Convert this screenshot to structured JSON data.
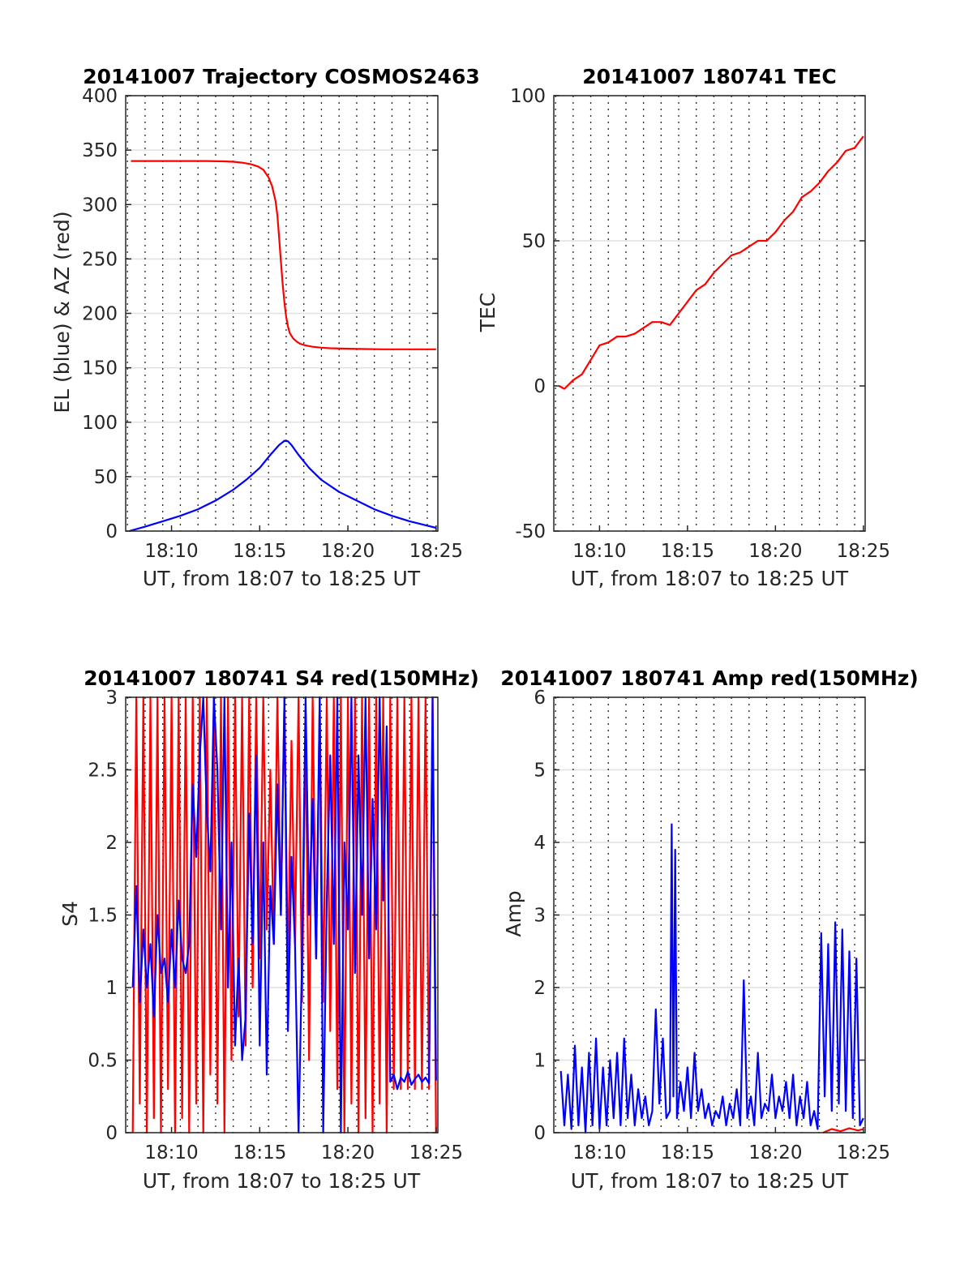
{
  "chart_data": [
    {
      "type": "line",
      "title": "20141007 Trajectory COSMOS2463",
      "xlabel": "UT, from 18:07 to 18:25 UT",
      "ylabel": "EL (blue) & AZ (red)",
      "xlim": [
        7.4,
        25.1
      ],
      "ylim": [
        0,
        400
      ],
      "yticks": [
        0,
        50,
        100,
        150,
        200,
        250,
        300,
        350,
        400
      ],
      "xtick_values": [
        10,
        15,
        20,
        25
      ],
      "xtick_labels": [
        "18:10",
        "18:15",
        "18:20",
        "18:25"
      ],
      "grid": "dotted vertical minute lines, light horizontal lines",
      "series": [
        {
          "color": "#ff0000",
          "x": [
            7.7,
            9,
            10,
            11,
            12,
            13,
            13.5,
            14,
            14.5,
            14.9,
            15.2,
            15.5,
            15.7,
            15.9,
            16.0,
            16.1,
            16.2,
            16.3,
            16.4,
            16.5,
            16.6,
            16.7,
            16.9,
            17.1,
            17.3,
            17.6,
            18.0,
            18.5,
            19,
            20,
            21,
            22,
            23,
            24,
            25
          ],
          "values": [
            340,
            340,
            340,
            340,
            340,
            339.7,
            339.3,
            338.5,
            337,
            335,
            332,
            325,
            317,
            303,
            290,
            270,
            248,
            227,
            210,
            197,
            188,
            182,
            177,
            174,
            172,
            170.5,
            169.3,
            168.5,
            168,
            167.5,
            167.2,
            167,
            167,
            167,
            167
          ]
        },
        {
          "color": "#0000ff",
          "x": [
            7.6,
            8.5,
            9.5,
            10.5,
            11.5,
            12.5,
            13.5,
            14.3,
            15,
            15.6,
            16.1,
            16.4,
            16.6,
            16.8,
            17.2,
            17.8,
            18.5,
            19.5,
            20.5,
            21.5,
            22.5,
            23.5,
            24.5,
            25
          ],
          "values": [
            0,
            4,
            9,
            14,
            20,
            28,
            38,
            48,
            58,
            70,
            79,
            83,
            82.5,
            79,
            70,
            58,
            47,
            36,
            28,
            20,
            14,
            9,
            5,
            3
          ]
        }
      ]
    },
    {
      "type": "line",
      "title": "20141007 180741 TEC",
      "xlabel": "UT, from 18:07 to 18:25 UT",
      "ylabel": "TEC",
      "xlim": [
        7.4,
        25.1
      ],
      "ylim": [
        -50,
        100
      ],
      "yticks": [
        -50,
        0,
        50,
        100
      ],
      "xtick_values": [
        10,
        15,
        20,
        25
      ],
      "xtick_labels": [
        "18:10",
        "18:15",
        "18:20",
        "18:25"
      ],
      "series": [
        {
          "color": "#ff0000",
          "x": [
            7.7,
            8.0,
            8.5,
            9.0,
            9.5,
            10.0,
            10.5,
            11.0,
            11.5,
            12.0,
            12.5,
            13.0,
            13.5,
            14.0,
            14.5,
            15.0,
            15.5,
            16.0,
            16.5,
            17.0,
            17.5,
            18.0,
            18.5,
            19.0,
            19.5,
            20.0,
            20.5,
            21.0,
            21.5,
            22.0,
            22.5,
            23.0,
            23.5,
            24.0,
            24.5,
            25.0
          ],
          "values": [
            0,
            -1,
            2,
            4,
            9,
            14,
            15,
            17,
            17,
            18,
            20,
            22,
            22,
            21,
            25,
            29,
            33,
            35,
            39,
            42,
            45,
            46,
            48,
            50,
            50,
            53,
            57,
            60,
            65,
            67,
            70,
            74,
            77,
            81,
            82,
            86
          ]
        }
      ]
    },
    {
      "type": "line",
      "title": "20141007 180741 S4 red(150MHz)",
      "xlabel": "UT, from 18:07 to 18:25 UT",
      "ylabel": "S4",
      "xlim": [
        7.4,
        25.1
      ],
      "ylim": [
        0,
        3
      ],
      "yticks": [
        0,
        0.5,
        1,
        1.5,
        2,
        2.5,
        3
      ],
      "ytick_labels": [
        "0",
        "0.5",
        "1",
        "1.5",
        "2",
        "2.5",
        "3"
      ],
      "xtick_values": [
        10,
        15,
        20,
        25
      ],
      "xtick_labels": [
        "18:10",
        "18:15",
        "18:20",
        "18:25"
      ],
      "series": [
        {
          "color": "#ff0000",
          "x": [
            7.8,
            8.0,
            8.2,
            8.4,
            8.6,
            8.8,
            9.0,
            9.2,
            9.4,
            9.6,
            9.8,
            10.0,
            10.2,
            10.4,
            10.6,
            10.8,
            11.0,
            11.2,
            11.4,
            11.6,
            11.8,
            12.0,
            12.2,
            12.4,
            12.6,
            12.8,
            13.0,
            13.2,
            13.4,
            13.6,
            13.8,
            14.0,
            14.2,
            14.4,
            14.6,
            14.8,
            15.0,
            15.2,
            15.4,
            15.6,
            15.8,
            16.0,
            16.2,
            16.4,
            16.6,
            16.8,
            17.0,
            17.2,
            17.4,
            17.6,
            17.8,
            18.0,
            18.2,
            18.4,
            18.6,
            18.8,
            19.0,
            19.2,
            19.4,
            19.6,
            19.8,
            20.0,
            20.2,
            20.4,
            20.6,
            20.8,
            21.0,
            21.2,
            21.4,
            21.6,
            21.8,
            22.0,
            22.2,
            22.4,
            22.6,
            22.8,
            23.0,
            23.2,
            23.4,
            23.6,
            23.8,
            24.0,
            24.2,
            24.4,
            24.6,
            24.8,
            25.0
          ],
          "values": [
            0,
            3,
            0.2,
            3,
            0,
            3,
            0.1,
            3,
            0,
            3,
            0.3,
            3,
            0,
            3,
            0.1,
            3,
            0,
            3,
            0.2,
            3,
            0,
            3,
            0.4,
            3,
            0.2,
            3,
            0,
            3,
            0.5,
            3,
            0.8,
            3,
            0.6,
            3,
            1.0,
            3,
            1.2,
            3,
            1.4,
            2.5,
            1.3,
            3,
            1.5,
            3,
            1.1,
            2.7,
            1.3,
            3,
            0.9,
            2.8,
            0.5,
            3,
            1.2,
            3,
            0.9,
            3,
            0.7,
            3,
            0.3,
            3,
            0,
            3,
            0.2,
            3,
            0,
            3,
            0.1,
            3,
            0,
            3,
            0.2,
            3,
            0,
            3,
            0.3,
            3,
            0.3,
            3,
            0.3,
            3,
            0.3,
            3,
            0.3,
            3,
            0.3,
            3,
            0
          ]
        },
        {
          "color": "#0000ff",
          "x": [
            7.8,
            8.0,
            8.2,
            8.4,
            8.6,
            8.8,
            9.0,
            9.2,
            9.4,
            9.6,
            9.8,
            10.0,
            10.2,
            10.4,
            10.6,
            10.8,
            11.0,
            11.2,
            11.4,
            11.6,
            11.8,
            12.0,
            12.2,
            12.4,
            12.6,
            12.8,
            13.0,
            13.2,
            13.4,
            13.6,
            13.8,
            14.0,
            14.2,
            14.4,
            14.6,
            14.8,
            15.0,
            15.2,
            15.4,
            15.6,
            15.8,
            16.0,
            16.2,
            16.4,
            16.6,
            16.8,
            17.0,
            17.2,
            17.4,
            17.6,
            17.8,
            18.0,
            18.2,
            18.4,
            18.6,
            18.8,
            19.0,
            19.2,
            19.4,
            19.6,
            19.8,
            20.0,
            20.2,
            20.4,
            20.6,
            20.8,
            21.0,
            21.2,
            21.4,
            21.6,
            21.8,
            22.0,
            22.2,
            22.4,
            22.6,
            22.8,
            23.0,
            23.2,
            23.4,
            23.6,
            23.8,
            24.0,
            24.2,
            24.4,
            24.6,
            24.8,
            25.0
          ],
          "values": [
            1.0,
            1.7,
            0.9,
            1.4,
            1.0,
            1.3,
            0.8,
            1.5,
            1.1,
            1.2,
            0.9,
            1.4,
            1.0,
            1.6,
            1.2,
            1.1,
            1.3,
            2.4,
            1.9,
            2.6,
            3,
            2.2,
            1.8,
            3,
            2.5,
            1.4,
            3,
            1.0,
            2.0,
            0.6,
            1.2,
            0.5,
            0.8,
            2.2,
            1.3,
            2.6,
            0.6,
            2.0,
            0.4,
            1.7,
            1.3,
            2.4,
            1.5,
            3,
            0.7,
            1.9,
            1.3,
            0.0,
            1.2,
            3,
            1.5,
            2.3,
            1.2,
            3,
            0.0,
            1.6,
            2.6,
            1.3,
            3,
            0.0,
            2.0,
            1.4,
            3,
            1.1,
            2.6,
            1.5,
            3,
            1.2,
            2.3,
            1.4,
            3,
            1.6,
            2.8,
            0.35,
            0.4,
            0.3,
            0.38,
            0.35,
            0.42,
            0.33,
            0.37,
            0.4,
            0.35,
            0.38,
            0.34,
            3,
            0.36
          ]
        }
      ]
    },
    {
      "type": "line",
      "title": "20141007 180741 Amp red(150MHz)",
      "xlabel": "UT, from 18:07 to 18:25 UT",
      "ylabel": "Amp",
      "xlim": [
        7.4,
        25.1
      ],
      "ylim": [
        0,
        6
      ],
      "yticks": [
        0,
        1,
        2,
        3,
        4,
        5,
        6
      ],
      "xtick_values": [
        10,
        15,
        20,
        25
      ],
      "xtick_labels": [
        "18:10",
        "18:15",
        "18:20",
        "18:25"
      ],
      "series": [
        {
          "color": "#0000ff",
          "x": [
            7.8,
            8.0,
            8.2,
            8.4,
            8.6,
            8.8,
            9.0,
            9.2,
            9.4,
            9.6,
            9.8,
            10.0,
            10.2,
            10.4,
            10.6,
            10.8,
            11.0,
            11.2,
            11.4,
            11.6,
            11.8,
            12.0,
            12.2,
            12.4,
            12.6,
            12.8,
            13.0,
            13.2,
            13.4,
            13.6,
            13.8,
            14.0,
            14.1,
            14.2,
            14.3,
            14.4,
            14.6,
            14.8,
            15.0,
            15.2,
            15.4,
            15.6,
            15.8,
            16.0,
            16.2,
            16.4,
            16.6,
            16.8,
            17.0,
            17.2,
            17.4,
            17.6,
            17.8,
            18.0,
            18.2,
            18.4,
            18.6,
            18.8,
            19.0,
            19.2,
            19.4,
            19.6,
            19.8,
            20.0,
            20.2,
            20.4,
            20.6,
            20.8,
            21.0,
            21.2,
            21.4,
            21.6,
            21.8,
            22.0,
            22.2,
            22.4,
            22.6,
            22.8,
            23.0,
            23.2,
            23.4,
            23.6,
            23.8,
            24.0,
            24.2,
            24.4,
            24.6,
            24.8,
            25.0
          ],
          "values": [
            0.85,
            0.1,
            0.8,
            0.05,
            1.2,
            0.1,
            0.9,
            0.0,
            1.1,
            0.1,
            1.3,
            0.05,
            0.9,
            0.1,
            1.0,
            0.2,
            1.1,
            0.1,
            1.3,
            0.2,
            0.8,
            0.1,
            0.6,
            0.2,
            0.5,
            0.1,
            0.3,
            1.7,
            0.4,
            1.3,
            0.2,
            0.3,
            4.25,
            0.5,
            3.9,
            0.2,
            0.7,
            0.3,
            0.9,
            0.2,
            1.1,
            0.3,
            0.6,
            0.2,
            0.4,
            0.1,
            0.3,
            0.2,
            0.5,
            0.1,
            0.4,
            0.2,
            0.6,
            0.1,
            2.1,
            0.2,
            0.5,
            0.1,
            1.1,
            0.2,
            0.4,
            0.3,
            0.8,
            0.2,
            0.5,
            0.3,
            0.7,
            0.2,
            0.8,
            0.1,
            0.5,
            0.2,
            0.7,
            0.1,
            0.3,
            0.05,
            2.75,
            0.5,
            2.6,
            0.3,
            2.9,
            0.4,
            2.8,
            0.3,
            2.5,
            0.2,
            2.4,
            0.1,
            0.2
          ]
        },
        {
          "color": "#ff0000",
          "x": [
            22.7,
            23.2,
            23.7,
            24.2,
            24.7,
            25.0
          ],
          "values": [
            0.0,
            0.05,
            0.02,
            0.06,
            0.03,
            0.05
          ]
        }
      ]
    }
  ]
}
